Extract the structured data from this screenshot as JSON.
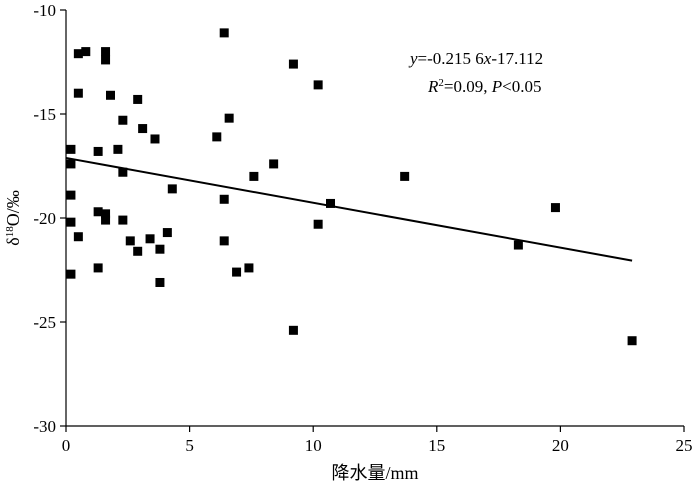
{
  "chart_data": {
    "type": "scatter",
    "title": "",
    "xlabel": "降水量/mm",
    "ylabel_parts": {
      "pre": "δ",
      "sup": "18",
      "post": "O/‰"
    },
    "xlim": [
      0,
      25
    ],
    "ylim": [
      -30,
      -10
    ],
    "x_ticks": [
      0,
      5,
      10,
      15,
      20,
      25
    ],
    "y_ticks": [
      -10,
      -15,
      -20,
      -25,
      -30
    ],
    "grid": false,
    "legend": "none",
    "points": [
      {
        "x": 0.2,
        "y": -16.7
      },
      {
        "x": 0.2,
        "y": -17.4
      },
      {
        "x": 0.2,
        "y": -18.9
      },
      {
        "x": 0.2,
        "y": -20.2
      },
      {
        "x": 0.2,
        "y": -22.7
      },
      {
        "x": 0.5,
        "y": -12.1
      },
      {
        "x": 0.5,
        "y": -14.0
      },
      {
        "x": 0.5,
        "y": -20.9
      },
      {
        "x": 0.8,
        "y": -12.0
      },
      {
        "x": 1.3,
        "y": -16.8
      },
      {
        "x": 1.3,
        "y": -19.7
      },
      {
        "x": 1.3,
        "y": -22.4
      },
      {
        "x": 1.6,
        "y": -12.0
      },
      {
        "x": 1.6,
        "y": -12.4
      },
      {
        "x": 1.6,
        "y": -19.8
      },
      {
        "x": 1.6,
        "y": -20.1
      },
      {
        "x": 1.8,
        "y": -14.1
      },
      {
        "x": 2.1,
        "y": -16.7
      },
      {
        "x": 2.3,
        "y": -15.3
      },
      {
        "x": 2.3,
        "y": -17.8
      },
      {
        "x": 2.3,
        "y": -20.1
      },
      {
        "x": 2.6,
        "y": -21.1
      },
      {
        "x": 2.9,
        "y": -14.3
      },
      {
        "x": 2.9,
        "y": -21.6
      },
      {
        "x": 3.1,
        "y": -15.7
      },
      {
        "x": 3.4,
        "y": -21.0
      },
      {
        "x": 3.6,
        "y": -16.2
      },
      {
        "x": 3.8,
        "y": -21.5
      },
      {
        "x": 3.8,
        "y": -23.1
      },
      {
        "x": 4.1,
        "y": -20.7
      },
      {
        "x": 4.3,
        "y": -18.6
      },
      {
        "x": 6.1,
        "y": -16.1
      },
      {
        "x": 6.4,
        "y": -11.1
      },
      {
        "x": 6.4,
        "y": -19.1
      },
      {
        "x": 6.4,
        "y": -21.1
      },
      {
        "x": 6.6,
        "y": -15.2
      },
      {
        "x": 6.9,
        "y": -22.6
      },
      {
        "x": 7.4,
        "y": -22.4
      },
      {
        "x": 7.6,
        "y": -18.0
      },
      {
        "x": 8.4,
        "y": -17.4
      },
      {
        "x": 9.2,
        "y": -12.6
      },
      {
        "x": 9.2,
        "y": -25.4
      },
      {
        "x": 10.2,
        "y": -13.6
      },
      {
        "x": 10.2,
        "y": -20.3
      },
      {
        "x": 10.7,
        "y": -19.3
      },
      {
        "x": 13.7,
        "y": -18.0
      },
      {
        "x": 18.3,
        "y": -21.3
      },
      {
        "x": 19.8,
        "y": -19.5
      },
      {
        "x": 22.9,
        "y": -25.9
      }
    ],
    "trendline": {
      "slope": -0.2156,
      "intercept": -17.112,
      "x_start": 0,
      "x_end": 22.9
    },
    "annotation": {
      "equation": {
        "y": "y",
        "eq": "=-0.215 6",
        "x": "x",
        "rest": "-17.112"
      },
      "stats": {
        "r": "R",
        "sup": "2",
        "r_rest": "=0.09, ",
        "p": "P",
        "p_rest": "<0.05"
      }
    }
  }
}
